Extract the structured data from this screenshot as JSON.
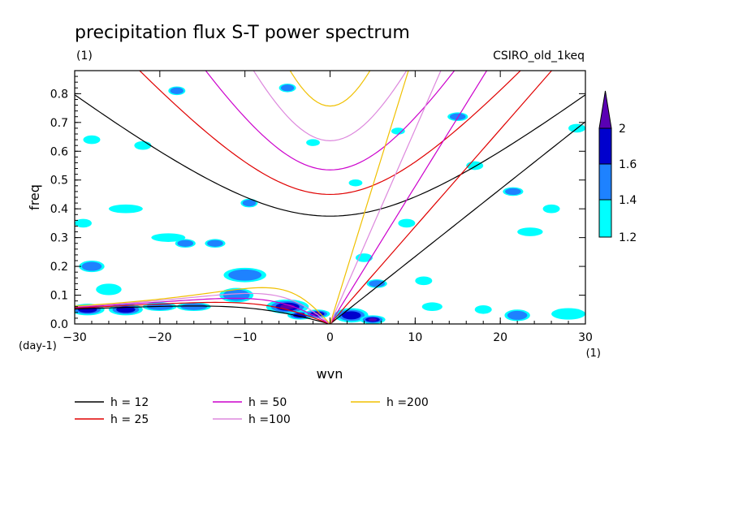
{
  "chart_data": {
    "type": "heatmap",
    "title": "precipitation flux S-T power spectrum",
    "subtitle_left": "(1)",
    "subtitle_right": "CSIRO_old_1keq",
    "xlabel": "wvn",
    "ylabel": "freq",
    "x_unit": "(1)",
    "y_unit": "(day-1)",
    "xlim": [
      -30,
      30
    ],
    "ylim": [
      0,
      0.88
    ],
    "x_ticks": [
      -30,
      -20,
      -10,
      0,
      10,
      20,
      30
    ],
    "x_tick_labels": [
      "−30",
      "−20",
      "−10",
      "0",
      "10",
      "20",
      "30"
    ],
    "y_ticks": [
      0,
      0.1,
      0.2,
      0.3,
      0.4,
      0.5,
      0.6,
      0.7,
      0.8
    ],
    "y_tick_labels": [
      "0.0",
      "0.1",
      "0.2",
      "0.3",
      "0.4",
      "0.5",
      "0.6",
      "0.7",
      "0.8"
    ],
    "colorbar": {
      "levels": [
        1.2,
        1.4,
        1.6,
        2
      ],
      "labels": [
        "1.2",
        "1.4",
        "1.6",
        "2"
      ],
      "colors": [
        "#00ffff",
        "#1e82ff",
        "#0000cd",
        "#5a00b4"
      ]
    },
    "legend": [
      {
        "label": "h = 12",
        "h": 12,
        "color": "#000000"
      },
      {
        "label": "h = 25",
        "h": 25,
        "color": "#e00000"
      },
      {
        "label": "h = 50",
        "h": 50,
        "color": "#cc00cc"
      },
      {
        "label": "h =100",
        "h": 100,
        "color": "#dd88dd"
      },
      {
        "label": "h =200",
        "h": 200,
        "color": "#f0c000"
      }
    ],
    "contour_blobs": [
      {
        "x": -28.5,
        "y": 0.05,
        "rx": 2.0,
        "ry": 0.02,
        "level": 2
      },
      {
        "x": -24.0,
        "y": 0.05,
        "rx": 2.0,
        "ry": 0.02,
        "level": 2
      },
      {
        "x": -20.0,
        "y": 0.06,
        "rx": 2.0,
        "ry": 0.015,
        "level": 1
      },
      {
        "x": -16.0,
        "y": 0.06,
        "rx": 2.0,
        "ry": 0.015,
        "level": 1
      },
      {
        "x": -11.0,
        "y": 0.1,
        "rx": 2.0,
        "ry": 0.025,
        "level": 1
      },
      {
        "x": -10.0,
        "y": 0.17,
        "rx": 2.5,
        "ry": 0.025,
        "level": 1
      },
      {
        "x": -5.0,
        "y": 0.06,
        "rx": 2.5,
        "ry": 0.025,
        "level": 3
      },
      {
        "x": -3.5,
        "y": 0.03,
        "rx": 1.5,
        "ry": 0.015,
        "level": 2
      },
      {
        "x": -1.5,
        "y": 0.035,
        "rx": 1.5,
        "ry": 0.015,
        "level": 3
      },
      {
        "x": 2.5,
        "y": 0.03,
        "rx": 2.0,
        "ry": 0.025,
        "level": 2
      },
      {
        "x": 5.0,
        "y": 0.015,
        "rx": 1.5,
        "ry": 0.015,
        "level": 3
      },
      {
        "x": 5.5,
        "y": 0.14,
        "rx": 1.2,
        "ry": 0.015,
        "level": 1
      },
      {
        "x": 4.0,
        "y": 0.23,
        "rx": 1.0,
        "ry": 0.015,
        "level": 0
      },
      {
        "x": -28.0,
        "y": 0.2,
        "rx": 1.5,
        "ry": 0.02,
        "level": 1
      },
      {
        "x": -19.0,
        "y": 0.3,
        "rx": 2.0,
        "ry": 0.015,
        "level": 0
      },
      {
        "x": -17.0,
        "y": 0.28,
        "rx": 1.2,
        "ry": 0.015,
        "level": 1
      },
      {
        "x": -13.5,
        "y": 0.28,
        "rx": 1.2,
        "ry": 0.015,
        "level": 1
      },
      {
        "x": -24.0,
        "y": 0.4,
        "rx": 2.0,
        "ry": 0.015,
        "level": 0
      },
      {
        "x": -29.0,
        "y": 0.35,
        "rx": 1.0,
        "ry": 0.015,
        "level": 0
      },
      {
        "x": -9.5,
        "y": 0.42,
        "rx": 1.0,
        "ry": 0.015,
        "level": 1
      },
      {
        "x": -5.0,
        "y": 0.82,
        "rx": 1.0,
        "ry": 0.015,
        "level": 1
      },
      {
        "x": -18.0,
        "y": 0.81,
        "rx": 1.0,
        "ry": 0.015,
        "level": 1
      },
      {
        "x": -22.0,
        "y": 0.62,
        "rx": 1.0,
        "ry": 0.015,
        "level": 0
      },
      {
        "x": 15.0,
        "y": 0.72,
        "rx": 1.2,
        "ry": 0.015,
        "level": 1
      },
      {
        "x": 17.0,
        "y": 0.55,
        "rx": 1.0,
        "ry": 0.015,
        "level": 0
      },
      {
        "x": 21.5,
        "y": 0.46,
        "rx": 1.2,
        "ry": 0.015,
        "level": 1
      },
      {
        "x": 23.5,
        "y": 0.32,
        "rx": 1.5,
        "ry": 0.015,
        "level": 0
      },
      {
        "x": 26.0,
        "y": 0.4,
        "rx": 1.0,
        "ry": 0.015,
        "level": 0
      },
      {
        "x": 22.0,
        "y": 0.03,
        "rx": 1.5,
        "ry": 0.02,
        "level": 1
      },
      {
        "x": 28.0,
        "y": 0.035,
        "rx": 2.0,
        "ry": 0.02,
        "level": 0
      },
      {
        "x": 18.0,
        "y": 0.05,
        "rx": 1.0,
        "ry": 0.015,
        "level": 0
      },
      {
        "x": 12.0,
        "y": 0.06,
        "rx": 1.2,
        "ry": 0.015,
        "level": 0
      },
      {
        "x": -26.0,
        "y": 0.12,
        "rx": 1.5,
        "ry": 0.02,
        "level": 0
      },
      {
        "x": 9.0,
        "y": 0.35,
        "rx": 1.0,
        "ry": 0.015,
        "level": 0
      },
      {
        "x": 11.0,
        "y": 0.15,
        "rx": 1.0,
        "ry": 0.015,
        "level": 0
      },
      {
        "x": -2.0,
        "y": 0.63,
        "rx": 0.8,
        "ry": 0.012,
        "level": 0
      },
      {
        "x": 3.0,
        "y": 0.49,
        "rx": 0.8,
        "ry": 0.012,
        "level": 0
      },
      {
        "x": 8.0,
        "y": 0.67,
        "rx": 0.8,
        "ry": 0.012,
        "level": 0
      },
      {
        "x": 29.0,
        "y": 0.68,
        "rx": 1.0,
        "ry": 0.015,
        "level": 0
      },
      {
        "x": -28.0,
        "y": 0.64,
        "rx": 1.0,
        "ry": 0.015,
        "level": 0
      }
    ]
  }
}
